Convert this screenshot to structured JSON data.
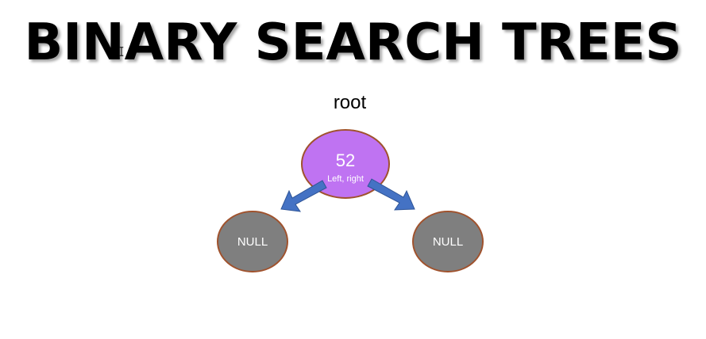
{
  "title": "BINARY SEARCH TREES",
  "root_label": "root",
  "root_node": {
    "value": "52",
    "subtitle": "Left, right",
    "color": "#bf73f2"
  },
  "left_child": {
    "value": "NULL",
    "color": "#7f7f7f"
  },
  "right_child": {
    "value": "NULL",
    "color": "#7f7f7f"
  },
  "colors": {
    "node_border": "#a0522d",
    "arrow_fill": "#4472c4",
    "arrow_stroke": "#2f5597"
  }
}
